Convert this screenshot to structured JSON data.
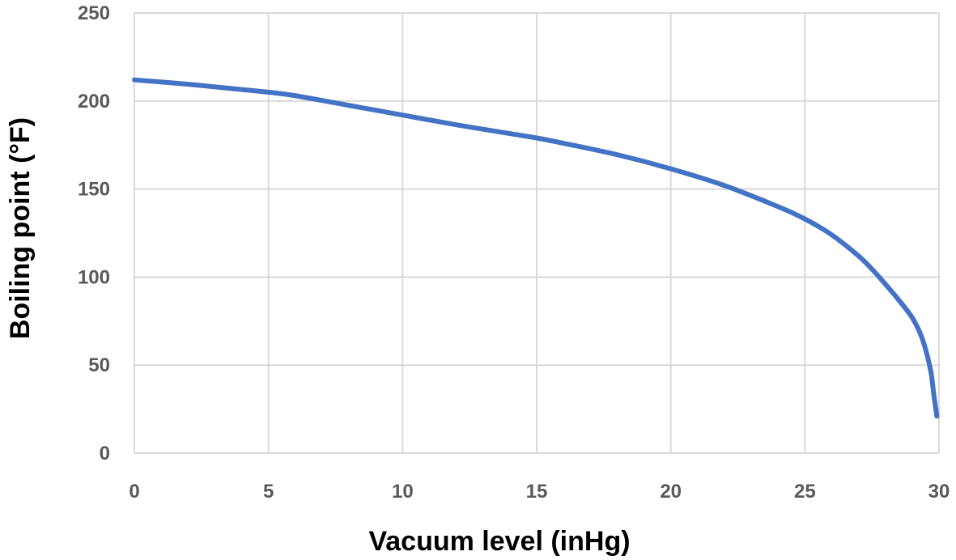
{
  "chart_data": {
    "type": "line",
    "title": "",
    "xlabel": "Vacuum level (inHg)",
    "ylabel": "Boiling point (°F)",
    "xlim": [
      0,
      30
    ],
    "ylim": [
      0,
      250
    ],
    "xticks": [
      0,
      5,
      10,
      15,
      20,
      25,
      30
    ],
    "yticks": [
      0,
      50,
      100,
      150,
      200,
      250
    ],
    "grid": true,
    "legend": "none",
    "series": [
      {
        "color": "#4472c4",
        "x": [
          0,
          2,
          4,
          5,
          6,
          8,
          10,
          12,
          14,
          15,
          16,
          18,
          20,
          22,
          24,
          25,
          26,
          27,
          27.5,
          28,
          28.5,
          29,
          29.3,
          29.5,
          29.7,
          29.8,
          29.92
        ],
        "y": [
          212,
          209.5,
          206.5,
          205,
          203,
          197.5,
          192,
          186.5,
          181.5,
          179,
          176,
          169.5,
          161.5,
          152,
          140,
          133,
          124,
          112,
          104.5,
          96,
          87,
          77,
          68,
          59,
          46,
          34,
          21
        ]
      }
    ]
  }
}
